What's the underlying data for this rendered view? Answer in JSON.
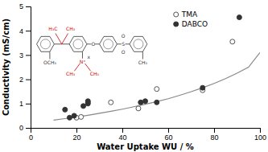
{
  "chart_data": {
    "type": "scatter",
    "xlabel": "Water Uptake WU / %",
    "ylabel": "Conductivity (mS/cm)",
    "xlim": [
      0,
      100
    ],
    "ylim": [
      0,
      5
    ],
    "xticks": [
      0,
      20,
      40,
      60,
      80,
      100
    ],
    "yticks": [
      0,
      1,
      2,
      3,
      4,
      5
    ],
    "grid": false,
    "legend": "upper right",
    "series": [
      {
        "type": "line",
        "color": "#888888",
        "line_style": "solid",
        "x": [
          10,
          15,
          20,
          25,
          30,
          35,
          40,
          45,
          50,
          55,
          60,
          65,
          70,
          75,
          80,
          85,
          90,
          95,
          100
        ],
        "values": [
          0.32,
          0.38,
          0.45,
          0.52,
          0.6,
          0.68,
          0.77,
          0.87,
          0.97,
          1.08,
          1.2,
          1.34,
          1.49,
          1.65,
          1.83,
          2.03,
          2.25,
          2.5,
          3.1
        ]
      },
      {
        "name": "TMA",
        "type": "scatter",
        "color": "#555555",
        "marker": "open circle",
        "x": [
          20,
          22,
          25,
          35,
          47,
          55,
          75,
          88
        ],
        "values": [
          0.42,
          0.45,
          1.05,
          1.05,
          0.8,
          1.6,
          1.55,
          3.55
        ]
      },
      {
        "name": "DABCO",
        "type": "scatter",
        "color": "#333333",
        "marker": "circle",
        "x": [
          15,
          17,
          19,
          23,
          25,
          25,
          48,
          50,
          55,
          75,
          91
        ],
        "values": [
          0.75,
          0.42,
          0.5,
          0.9,
          1.0,
          1.1,
          1.05,
          1.1,
          1.05,
          1.65,
          4.55
        ]
      }
    ],
    "annotations": [
      {
        "text": "OCH₃",
        "color": "#333333"
      },
      {
        "text": "H₃C",
        "color": "#cc0000"
      },
      {
        "text": "CH₃",
        "color": "#cc0000"
      },
      {
        "text": "O",
        "color": "#333333"
      },
      {
        "text": "N⁺",
        "color": "#cc0000"
      },
      {
        "text": "CH₃",
        "color": "#cc0000"
      },
      {
        "text": "CH₃",
        "color": "#cc0000"
      },
      {
        "text": "x",
        "color": "#333333"
      },
      {
        "text": "S",
        "color": "#333333"
      },
      {
        "text": "O",
        "color": "#333333"
      },
      {
        "text": "O",
        "color": "#333333"
      },
      {
        "text": "CH₃",
        "color": "#333333"
      }
    ]
  }
}
